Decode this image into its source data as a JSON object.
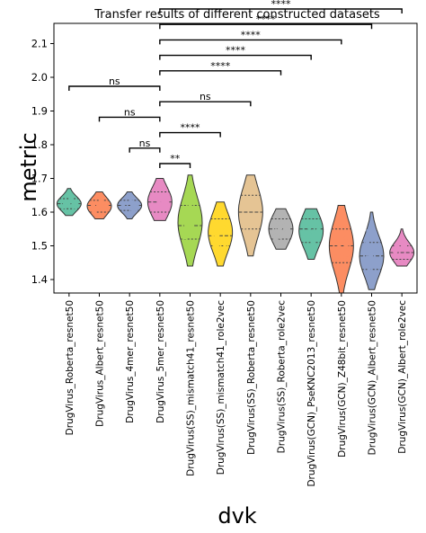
{
  "chart_data": {
    "type": "violin",
    "title": "Transfer results of different constructed datasets",
    "xlabel": "dvk",
    "ylabel": "metric",
    "ylim": [
      1.36,
      2.16
    ],
    "yticks": [
      "1.4",
      "1.5",
      "1.6",
      "1.7",
      "1.8",
      "1.9",
      "2.0",
      "2.1"
    ],
    "categories": [
      "DrugVirus_Roberta_resnet50",
      "DrugVirus_Albert_resnet50",
      "DrugVirus_4mer_resnet50",
      "DrugVirus_5mer_resnet50",
      "DrugVirus(SS)_mismatch41_resnet50",
      "DrugVirus(SS)_mismatch41_role2vec",
      "DrugVirus(SS)_Roberta_resnet50",
      "DrugVirus(SS)_Roberta_role2vec",
      "DrugVirus(GCN)_PseKNC2013_resnet50",
      "DrugVirus(GCN)_Z48bit_resnet50",
      "DrugVirus(GCN)_Albert_resnet50",
      "DrugVirus(GCN)_Albert_role2vec"
    ],
    "colors": [
      "#66c2a5",
      "#fc8d62",
      "#8da0cb",
      "#e78ac3",
      "#a6d854",
      "#ffd92f",
      "#e5c494",
      "#b3b3b3",
      "#66c2a5",
      "#fc8d62",
      "#8da0cb",
      "#e78ac3"
    ],
    "distributions": [
      {
        "min": 1.59,
        "max": 1.67,
        "median": 1.625,
        "q1": 1.61,
        "q3": 1.64
      },
      {
        "min": 1.58,
        "max": 1.66,
        "median": 1.62,
        "q1": 1.6,
        "q3": 1.635
      },
      {
        "min": 1.58,
        "max": 1.66,
        "median": 1.62,
        "q1": 1.605,
        "q3": 1.635
      },
      {
        "min": 1.575,
        "max": 1.7,
        "median": 1.63,
        "q1": 1.6,
        "q3": 1.66
      },
      {
        "min": 1.44,
        "max": 1.71,
        "median": 1.56,
        "q1": 1.52,
        "q3": 1.62
      },
      {
        "min": 1.44,
        "max": 1.63,
        "median": 1.53,
        "q1": 1.5,
        "q3": 1.58
      },
      {
        "min": 1.47,
        "max": 1.71,
        "median": 1.6,
        "q1": 1.55,
        "q3": 1.65
      },
      {
        "min": 1.49,
        "max": 1.61,
        "median": 1.55,
        "q1": 1.52,
        "q3": 1.58
      },
      {
        "min": 1.46,
        "max": 1.61,
        "median": 1.55,
        "q1": 1.51,
        "q3": 1.58
      },
      {
        "min": 1.36,
        "max": 1.62,
        "median": 1.5,
        "q1": 1.45,
        "q3": 1.55
      },
      {
        "min": 1.37,
        "max": 1.6,
        "median": 1.47,
        "q1": 1.43,
        "q3": 1.51
      },
      {
        "min": 1.44,
        "max": 1.55,
        "median": 1.48,
        "q1": 1.46,
        "q3": 1.5
      }
    ],
    "comparisons": [
      {
        "from": 3,
        "to": 4,
        "label": "**"
      },
      {
        "from": 3,
        "to": 2,
        "label": "ns"
      },
      {
        "from": 3,
        "to": 5,
        "label": "****"
      },
      {
        "from": 3,
        "to": 1,
        "label": "ns"
      },
      {
        "from": 3,
        "to": 6,
        "label": "ns"
      },
      {
        "from": 3,
        "to": 0,
        "label": "ns"
      },
      {
        "from": 3,
        "to": 7,
        "label": "****"
      },
      {
        "from": 3,
        "to": 8,
        "label": "****"
      },
      {
        "from": 3,
        "to": 9,
        "label": "****"
      },
      {
        "from": 3,
        "to": 10,
        "label": "****"
      },
      {
        "from": 3,
        "to": 11,
        "label": "****"
      }
    ]
  }
}
